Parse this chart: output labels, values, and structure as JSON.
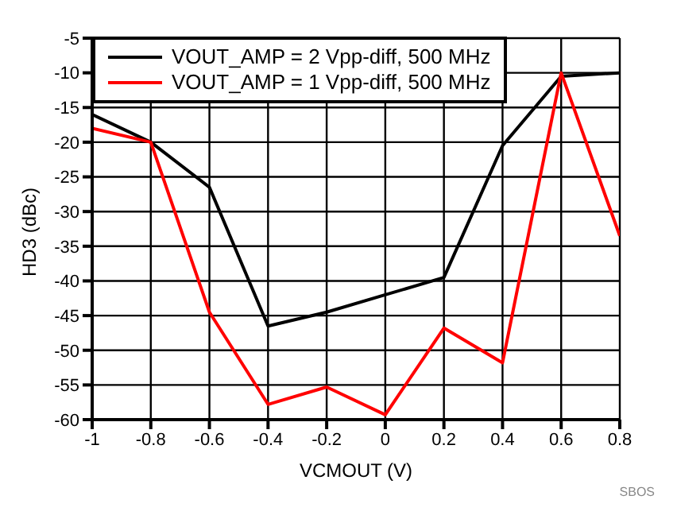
{
  "chart_data": {
    "type": "line",
    "xlabel": "VCMOUT (V)",
    "ylabel": "HD3 (dBc)",
    "x": [
      -1,
      -0.8,
      -0.6,
      -0.4,
      -0.2,
      0,
      0.2,
      0.4,
      0.6,
      0.8
    ],
    "series": [
      {
        "name": "VOUT_AMP = 2 Vpp-diff, 500 MHz",
        "color": "#000000",
        "values": [
          -16,
          -20,
          -26.5,
          -46.5,
          -44.5,
          -42,
          -39.5,
          -20.5,
          -10.5,
          -10
        ]
      },
      {
        "name": "VOUT_AMP = 1 Vpp-diff, 500 MHz",
        "color": "#ff0000",
        "values": [
          -18,
          -20,
          -44.5,
          -57.8,
          -55.3,
          -59.3,
          -46.8,
          -51.8,
          -10,
          -33.5
        ]
      }
    ],
    "xlim": [
      -1,
      0.8
    ],
    "xticks": [
      -1,
      -0.8,
      -0.6,
      -0.4,
      -0.2,
      0,
      0.2,
      0.4,
      0.6,
      0.8
    ],
    "ylim": [
      -60,
      -5
    ],
    "yticks": [
      -60,
      -55,
      -50,
      -45,
      -40,
      -35,
      -30,
      -25,
      -20,
      -15,
      -10,
      -5
    ],
    "grid": true,
    "legend": "top left",
    "marker": "none",
    "line_style": "solid",
    "annotations": [
      "SBOS"
    ]
  }
}
